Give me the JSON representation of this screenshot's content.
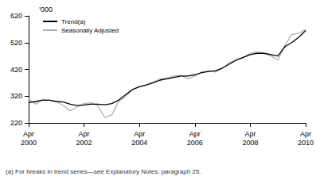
{
  "chart_data": {
    "type": "line",
    "y_label": "'000",
    "note": "(a) For breaks in trend series—see Explanatory Notes, paragraph 25.",
    "categories": [
      "Apr 2000",
      null,
      null,
      null,
      null,
      null,
      null,
      null,
      "Apr 2002",
      null,
      null,
      null,
      null,
      null,
      null,
      null,
      "Apr 2004",
      null,
      null,
      null,
      null,
      null,
      null,
      null,
      "Apr 2006",
      null,
      null,
      null,
      null,
      null,
      null,
      null,
      "Apr 2008",
      null,
      null,
      null,
      null,
      null,
      null,
      null,
      "Apr 2010"
    ],
    "series": [
      {
        "name": "Trend(a)",
        "color": "#000000",
        "line_style": "solid",
        "values": [
          295,
          300,
          305,
          305,
          300,
          298,
          290,
          285,
          287,
          290,
          290,
          288,
          292,
          305,
          325,
          345,
          355,
          362,
          370,
          380,
          385,
          390,
          395,
          395,
          400,
          408,
          412,
          415,
          425,
          440,
          455,
          465,
          475,
          480,
          480,
          475,
          470,
          505,
          520,
          540,
          565
        ]
      },
      {
        "name": "Seasonally Adjusted",
        "color": "#b0b0b0",
        "line_style": "solid",
        "values": [
          310,
          290,
          308,
          305,
          300,
          285,
          265,
          280,
          292,
          295,
          285,
          240,
          250,
          300,
          318,
          345,
          355,
          362,
          372,
          385,
          388,
          395,
          398,
          385,
          395,
          410,
          415,
          410,
          425,
          445,
          455,
          465,
          480,
          485,
          480,
          470,
          455,
          510,
          550,
          555,
          570
        ]
      }
    ],
    "ylim": [
      220,
      620
    ],
    "yticks": [
      220,
      320,
      420,
      520,
      620
    ],
    "grid": false,
    "legend": "top-left"
  }
}
